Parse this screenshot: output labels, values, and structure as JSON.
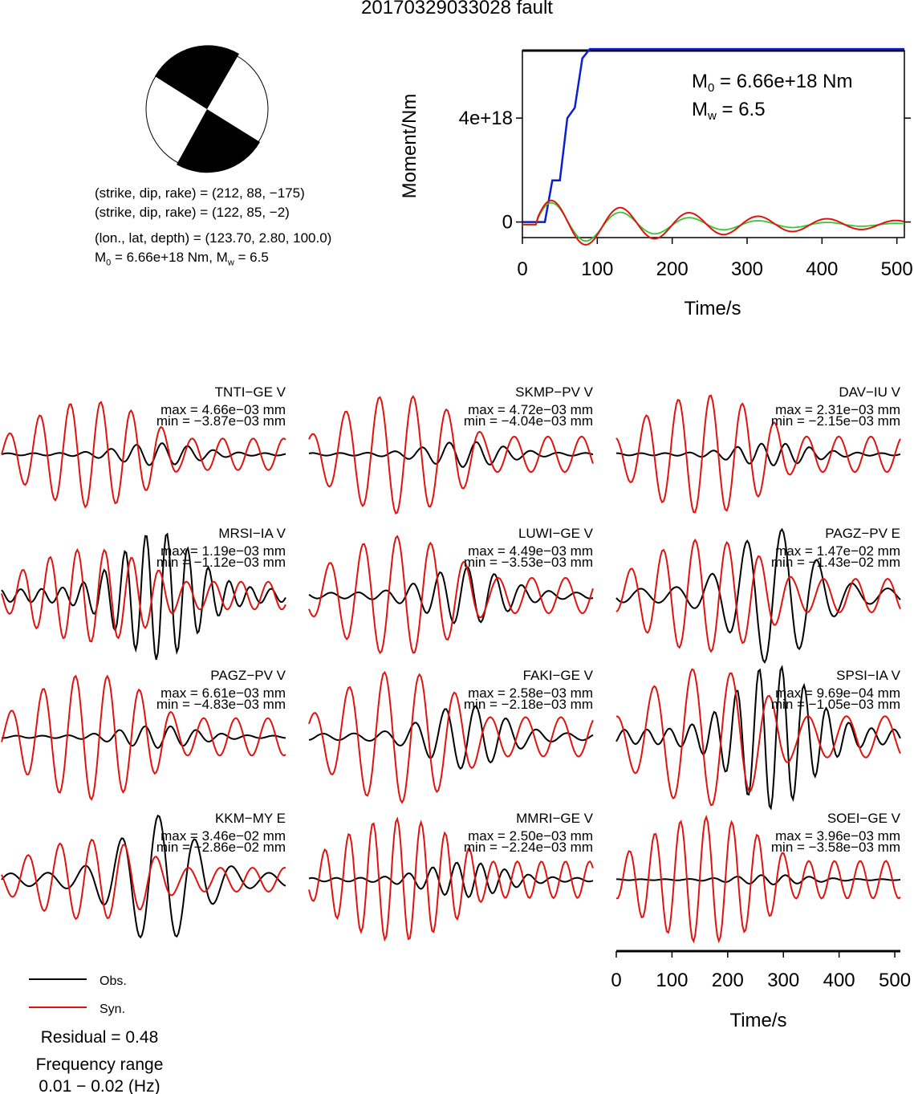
{
  "title": "20170329033028 fault",
  "focal": {
    "plane1": "(strike, dip, rake) = (212, 88, −175)",
    "plane2": "(strike, dip, rake) = (122, 85, −2)",
    "location": "(lon., lat, depth) = (123.70, 2.80, 100.0)",
    "moment_prefix": "M",
    "moment_sub": "0",
    "moment_rest": " = 6.66e+18 Nm, M",
    "mw_sub": "w",
    "mw_rest": " = 6.5"
  },
  "colors": {
    "observed": "#000000",
    "synthetic": "#e0140f",
    "moment": "#0a1ed2",
    "stf": "#34c834"
  },
  "chart_data": [
    {
      "type": "line",
      "name": "moment",
      "xlabel": "Time/s",
      "ylabel": "Moment/Nm",
      "xlim": [
        0,
        510
      ],
      "ylim": [
        -6e+17,
        6.6e+18
      ],
      "xticks": [
        "0",
        "100",
        "200",
        "300",
        "400",
        "500"
      ],
      "yticks": [
        "0",
        "4e+18"
      ],
      "annotation_m0_prefix": "M",
      "annotation_m0_sub": "0",
      "annotation_m0_rest": " = 6.66e+18 Nm",
      "annotation_mw_prefix": "M",
      "annotation_mw_sub": "w",
      "annotation_mw_rest": " = 6.5",
      "cumulative_moment": {
        "t": [
          0,
          30,
          40,
          50,
          60,
          70,
          80,
          90,
          510
        ],
        "m": [
          0,
          0,
          1.6e+18,
          1.6e+18,
          4e+18,
          4.4e+18,
          6.3e+18,
          6.66e+18,
          6.66e+18
        ]
      }
    },
    {
      "type": "line",
      "name": "waveforms",
      "xlabel": "Time/s",
      "xticks": [
        "0",
        "100",
        "200",
        "300",
        "400",
        "500"
      ],
      "series_names": [
        "Obs.",
        "Syn."
      ],
      "traces": [
        {
          "station": "TNTI−GE V",
          "max": "max = 4.66e−03 mm",
          "min": "min = −3.87e−03 mm"
        },
        {
          "station": "SKMP−PV V",
          "max": "max = 4.72e−03 mm",
          "min": "min = −4.04e−03 mm"
        },
        {
          "station": "DAV−IU V",
          "max": "max = 2.31e−03 mm",
          "min": "min = −2.15e−03 mm"
        },
        {
          "station": "MRSI−IA V",
          "max": "max = 1.19e−03 mm",
          "min": "min = −1.12e−03 mm"
        },
        {
          "station": "LUWI−GE V",
          "max": "max = 4.49e−03 mm",
          "min": "min = −3.53e−03 mm"
        },
        {
          "station": "PAGZ−PV E",
          "max": "max = 1.47e−02 mm",
          "min": "min = −1.43e−02 mm"
        },
        {
          "station": "PAGZ−PV V",
          "max": "max = 6.61e−03 mm",
          "min": "min = −4.83e−03 mm"
        },
        {
          "station": "FAKI−GE V",
          "max": "max = 2.58e−03 mm",
          "min": "min = −2.18e−03 mm"
        },
        {
          "station": "SPSI−IA V",
          "max": "max = 9.69e−04 mm",
          "min": "min = −1.05e−03 mm"
        },
        {
          "station": "KKM−MY E",
          "max": "max = 3.46e−02 mm",
          "min": "min = −2.86e−02 mm"
        },
        {
          "station": "MMRI−GE V",
          "max": "max = 2.50e−03 mm",
          "min": "min = −2.24e−03 mm"
        },
        {
          "station": "SOEI−GE V",
          "max": "max = 3.96e−03 mm",
          "min": "min = −3.58e−03 mm"
        }
      ]
    }
  ],
  "legend": {
    "obs_label": "Obs.",
    "syn_label": "Syn."
  },
  "residual": "Residual = 0.48",
  "freq_label": "Frequency range",
  "freq_value": "0.01 − 0.02 (Hz)"
}
